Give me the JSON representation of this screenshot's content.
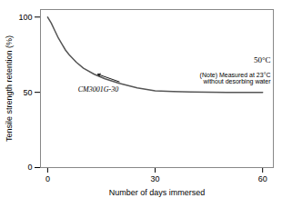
{
  "chart_data": {
    "type": "line",
    "xlabel": "Number of days immersed",
    "ylabel": "Tensile strength retention (%)",
    "x": [
      0,
      1,
      2,
      3,
      4,
      5,
      6,
      8,
      10,
      13,
      16,
      20,
      25,
      30,
      35,
      40,
      45,
      50,
      55,
      60
    ],
    "values": [
      100,
      96,
      91,
      86,
      82,
      78,
      75,
      70,
      66,
      62,
      59,
      56,
      53,
      51,
      50.5,
      50.2,
      50.1,
      50.0,
      50.0,
      50.0
    ],
    "color": "#555555",
    "xlim": [
      -2,
      63
    ],
    "ylim": [
      0,
      105
    ],
    "xticks": [
      0,
      30,
      60
    ],
    "yticks": [
      0,
      50,
      100
    ],
    "grid": false,
    "annotations": [
      {
        "text": "CM3001G-30",
        "x": 20,
        "y": 57,
        "arrow_x": 14,
        "arrow_y": 62
      },
      {
        "text": "50°C",
        "y": 70
      },
      {
        "text": "(Note) Measured at 23°C",
        "y": 63
      },
      {
        "text": "without desorbing water",
        "y": 59
      }
    ]
  }
}
